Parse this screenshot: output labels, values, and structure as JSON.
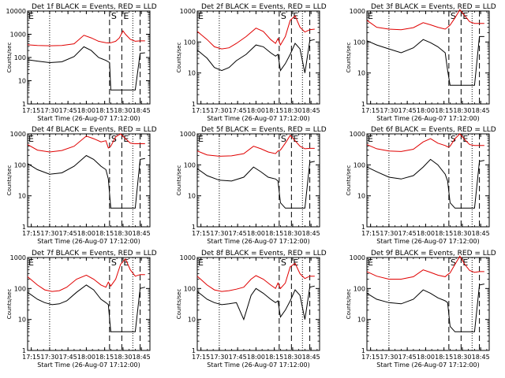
{
  "colors": {
    "events": "#000000",
    "lld": "#e00000",
    "background": "#ffffff"
  },
  "shared": {
    "x_ticks": [
      "17:15",
      "17:30",
      "17:45",
      "18:00",
      "18:15",
      "18:30",
      "18:45"
    ],
    "x_tick_minutes": [
      15,
      30,
      45,
      60,
      75,
      90,
      105
    ],
    "xlim_minutes": [
      12,
      112
    ],
    "y_ticks": [
      "1",
      "10",
      "100",
      "1000"
    ],
    "y_tick_values": [
      1,
      10,
      100,
      1000
    ],
    "ylabel": "Counts/sec",
    "xlabel": "Start Time (26-Aug-07 17:12:00)",
    "ylim": [
      1,
      1000
    ],
    "scale": "log",
    "dotted_line_minutes": [
      30,
      98
    ],
    "dashed_line_minutes": [
      79,
      89,
      104
    ],
    "markers": [
      {
        "label": "E",
        "minute": 12
      },
      {
        "label": "S",
        "minute": 79
      },
      {
        "label": "E",
        "minute": 89
      }
    ]
  },
  "chart_data": [
    {
      "type": "line",
      "title": "Det 1f BLACK = Events, RED = LLD",
      "y_ticks": [
        "1",
        "10",
        "100",
        "1000",
        "10000"
      ],
      "y_tick_values": [
        1,
        10,
        100,
        1000,
        10000
      ],
      "ylim": [
        1,
        10000
      ],
      "x_minutes": [
        12,
        20,
        30,
        40,
        50,
        58,
        64,
        70,
        76,
        79,
        80,
        84,
        87,
        90,
        92,
        96,
        100,
        104,
        108
      ],
      "series": [
        {
          "name": "Events",
          "values": [
            80,
            70,
            60,
            65,
            110,
            290,
            200,
            100,
            75,
            60,
            4,
            4,
            4,
            4,
            4,
            4,
            4,
            150,
            160
          ]
        },
        {
          "name": "LLD",
          "values": [
            350,
            330,
            320,
            330,
            390,
            900,
            700,
            500,
            430,
            420,
            430,
            500,
            700,
            1400,
            1000,
            600,
            500,
            520,
            520
          ]
        }
      ]
    },
    {
      "type": "line",
      "title": "Det 2f BLACK = Events, RED = LLD",
      "x_minutes": [
        12,
        20,
        26,
        32,
        38,
        44,
        52,
        60,
        66,
        72,
        76,
        78,
        80,
        84,
        88,
        92,
        96,
        100,
        104,
        108
      ],
      "series": [
        {
          "name": "Events",
          "values": [
            55,
            30,
            15,
            12,
            15,
            25,
            40,
            80,
            70,
            45,
            35,
            40,
            12,
            20,
            40,
            90,
            60,
            10,
            110,
            120
          ]
        },
        {
          "name": "LLD",
          "values": [
            220,
            120,
            70,
            60,
            65,
            90,
            150,
            280,
            220,
            120,
            90,
            130,
            80,
            150,
            500,
            700,
            300,
            210,
            250,
            260
          ]
        }
      ]
    },
    {
      "type": "line",
      "title": "Det 3f BLACK = Events, RED = LLD",
      "x_minutes": [
        12,
        20,
        30,
        40,
        50,
        58,
        64,
        70,
        76,
        78,
        80,
        84,
        88,
        92,
        96,
        100,
        104,
        108
      ],
      "series": [
        {
          "name": "Events",
          "values": [
            110,
            80,
            60,
            45,
            65,
            120,
            95,
            70,
            45,
            12,
            4,
            4,
            4,
            4,
            4,
            4,
            150,
            150
          ]
        },
        {
          "name": "LLD",
          "values": [
            500,
            300,
            260,
            250,
            290,
            420,
            360,
            300,
            260,
            300,
            350,
            600,
            1100,
            700,
            450,
            400,
            400,
            400
          ]
        }
      ]
    },
    {
      "type": "line",
      "title": "Det 4f BLACK = Events, RED = LLD",
      "x_minutes": [
        12,
        20,
        30,
        40,
        50,
        60,
        66,
        72,
        76,
        78,
        80,
        84,
        88,
        92,
        96,
        100,
        104,
        108
      ],
      "series": [
        {
          "name": "Events",
          "values": [
            110,
            70,
            50,
            55,
            90,
            200,
            150,
            90,
            70,
            35,
            4,
            4,
            4,
            4,
            4,
            4,
            150,
            160
          ]
        },
        {
          "name": "LLD",
          "values": [
            450,
            300,
            260,
            290,
            400,
            850,
            700,
            550,
            600,
            350,
            400,
            800,
            1000,
            700,
            500,
            480,
            480,
            480
          ]
        }
      ]
    },
    {
      "type": "line",
      "title": "Det 5f BLACK = Events, RED = LLD",
      "x_minutes": [
        12,
        20,
        30,
        40,
        50,
        58,
        64,
        70,
        76,
        78,
        80,
        84,
        88,
        92,
        96,
        100,
        104,
        108
      ],
      "series": [
        {
          "name": "Events",
          "values": [
            75,
            45,
            32,
            30,
            40,
            85,
            60,
            40,
            35,
            30,
            6,
            4,
            4,
            4,
            4,
            4,
            120,
            130
          ]
        },
        {
          "name": "LLD",
          "values": [
            280,
            210,
            190,
            195,
            230,
            400,
            330,
            260,
            230,
            280,
            300,
            500,
            900,
            600,
            400,
            330,
            340,
            340
          ]
        }
      ]
    },
    {
      "type": "line",
      "title": "Det 6f BLACK = Events, RED = LLD",
      "x_minutes": [
        12,
        20,
        30,
        40,
        50,
        58,
        64,
        70,
        76,
        78,
        80,
        84,
        88,
        92,
        96,
        100,
        104,
        108
      ],
      "series": [
        {
          "name": "Events",
          "values": [
            85,
            60,
            40,
            35,
            45,
            85,
            150,
            100,
            50,
            30,
            6,
            4,
            4,
            4,
            4,
            4,
            130,
            140
          ]
        },
        {
          "name": "LLD",
          "values": [
            450,
            330,
            280,
            270,
            320,
            550,
            700,
            500,
            420,
            380,
            400,
            700,
            1000,
            650,
            450,
            420,
            420,
            420
          ]
        }
      ]
    },
    {
      "type": "line",
      "title": "Det 7f BLACK = Events, RED = LLD",
      "x_minutes": [
        12,
        20,
        26,
        32,
        38,
        44,
        52,
        60,
        66,
        72,
        76,
        78,
        80,
        84,
        88,
        92,
        96,
        100,
        104,
        108
      ],
      "series": [
        {
          "name": "Events",
          "values": [
            75,
            45,
            35,
            30,
            32,
            40,
            75,
            130,
            90,
            45,
            35,
            30,
            4,
            4,
            4,
            4,
            4,
            4,
            100,
            110
          ]
        },
        {
          "name": "LLD",
          "values": [
            240,
            130,
            90,
            80,
            85,
            110,
            200,
            270,
            200,
            130,
            110,
            160,
            120,
            200,
            600,
            900,
            400,
            250,
            280,
            280
          ]
        }
      ]
    },
    {
      "type": "line",
      "title": "Det 8f BLACK = Events, RED = LLD",
      "x_minutes": [
        12,
        20,
        26,
        32,
        38,
        44,
        50,
        56,
        60,
        66,
        72,
        76,
        78,
        80,
        84,
        88,
        92,
        96,
        100,
        104,
        108
      ],
      "series": [
        {
          "name": "Events",
          "values": [
            80,
            45,
            35,
            30,
            32,
            35,
            10,
            60,
            100,
            70,
            45,
            35,
            40,
            12,
            20,
            40,
            90,
            60,
            10,
            110,
            120
          ]
        },
        {
          "name": "LLD",
          "values": [
            250,
            130,
            90,
            80,
            85,
            95,
            110,
            200,
            260,
            200,
            130,
            100,
            150,
            100,
            150,
            500,
            650,
            300,
            210,
            250,
            250
          ]
        }
      ]
    },
    {
      "type": "line",
      "title": "Det 9f BLACK = Events, RED = LLD",
      "x_minutes": [
        12,
        20,
        30,
        40,
        50,
        58,
        64,
        70,
        76,
        78,
        80,
        84,
        88,
        92,
        96,
        100,
        104,
        108
      ],
      "series": [
        {
          "name": "Events",
          "values": [
            70,
            45,
            35,
            32,
            45,
            90,
            70,
            50,
            40,
            35,
            6,
            4,
            4,
            4,
            4,
            4,
            130,
            140
          ]
        },
        {
          "name": "LLD",
          "values": [
            350,
            250,
            200,
            200,
            240,
            400,
            330,
            270,
            240,
            280,
            320,
            600,
            1100,
            600,
            380,
            330,
            350,
            350
          ]
        }
      ]
    }
  ]
}
